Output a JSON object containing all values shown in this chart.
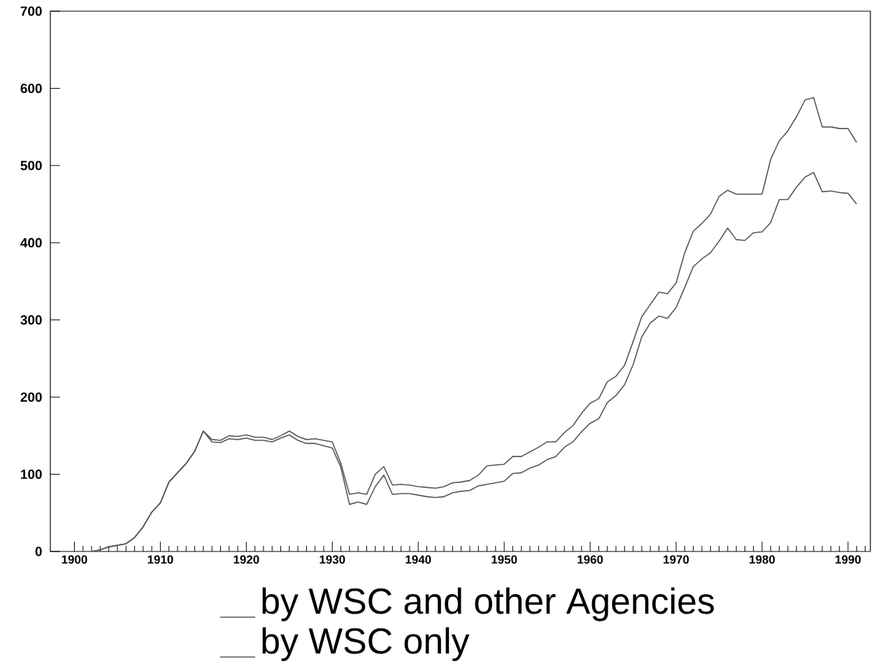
{
  "chart_data": {
    "type": "line",
    "x": [
      1902,
      1903,
      1904,
      1905,
      1906,
      1907,
      1908,
      1909,
      1910,
      1911,
      1912,
      1913,
      1914,
      1915,
      1916,
      1917,
      1918,
      1919,
      1920,
      1921,
      1922,
      1923,
      1924,
      1925,
      1926,
      1927,
      1928,
      1929,
      1930,
      1931,
      1932,
      1933,
      1934,
      1935,
      1936,
      1937,
      1938,
      1939,
      1940,
      1941,
      1942,
      1943,
      1944,
      1945,
      1946,
      1947,
      1948,
      1949,
      1950,
      1951,
      1952,
      1953,
      1954,
      1955,
      1956,
      1957,
      1958,
      1959,
      1960,
      1961,
      1962,
      1963,
      1964,
      1965,
      1966,
      1967,
      1968,
      1969,
      1970,
      1971,
      1972,
      1973,
      1974,
      1975,
      1976,
      1977,
      1978,
      1979,
      1980,
      1981,
      1982,
      1983,
      1984,
      1985,
      1986,
      1987,
      1988,
      1989,
      1990,
      1991
    ],
    "series": [
      {
        "name": "by WSC and other Agencies",
        "color": "#555555",
        "values": [
          0,
          2,
          6,
          8,
          10,
          18,
          32,
          51,
          63,
          90,
          102,
          114,
          130,
          156,
          145,
          144,
          150,
          149,
          151,
          148,
          148,
          145,
          150,
          156,
          149,
          145,
          146,
          144,
          142,
          114,
          74,
          76,
          74,
          100,
          110,
          86,
          87,
          86,
          84,
          83,
          82,
          84,
          89,
          90,
          92,
          99,
          111,
          112,
          113,
          123,
          123,
          129,
          135,
          142,
          142,
          154,
          163,
          179,
          192,
          198,
          220,
          227,
          241,
          272,
          304,
          320,
          336,
          334,
          348,
          387,
          415,
          425,
          437,
          460,
          468,
          463,
          463,
          463,
          463,
          508,
          532,
          545,
          563,
          585,
          588,
          550,
          550,
          548,
          548,
          530
        ]
      },
      {
        "name": "by WSC only",
        "color": "#555555",
        "values": [
          0,
          2,
          6,
          8,
          10,
          18,
          32,
          51,
          63,
          90,
          102,
          114,
          130,
          156,
          142,
          141,
          146,
          145,
          147,
          144,
          144,
          142,
          147,
          151,
          144,
          140,
          140,
          137,
          134,
          109,
          61,
          64,
          61,
          84,
          99,
          74,
          75,
          75,
          73,
          71,
          70,
          71,
          76,
          78,
          79,
          85,
          87,
          89,
          91,
          101,
          102,
          108,
          112,
          119,
          123,
          135,
          142,
          155,
          166,
          172,
          193,
          202,
          216,
          242,
          278,
          296,
          305,
          302,
          316,
          342,
          369,
          379,
          387,
          402,
          419,
          404,
          403,
          413,
          414,
          426,
          456,
          456,
          472,
          485,
          491,
          466,
          467,
          465,
          464,
          450
        ]
      }
    ],
    "xlim": [
      1897.2,
      1992.6
    ],
    "ylim": [
      0,
      700
    ],
    "xticks": [
      1900,
      1910,
      1920,
      1930,
      1940,
      1950,
      1960,
      1970,
      1980,
      1990,
      {
        "value": 1901,
        "label": null
      },
      {
        "value": 1902,
        "label": null
      },
      {
        "value": 1903,
        "label": null
      },
      {
        "value": 1904,
        "label": null
      },
      {
        "value": 1905,
        "label": null
      },
      {
        "value": 1906,
        "label": null
      },
      {
        "value": 1907,
        "label": null
      },
      {
        "value": 1908,
        "label": null
      },
      {
        "value": 1909,
        "label": null
      },
      {
        "value": 1911,
        "label": null
      },
      {
        "value": 1912,
        "label": null
      },
      {
        "value": 1913,
        "label": null
      },
      {
        "value": 1914,
        "label": null
      },
      {
        "value": 1915,
        "label": null
      },
      {
        "value": 1916,
        "label": null
      },
      {
        "value": 1917,
        "label": null
      },
      {
        "value": 1918,
        "label": null
      },
      {
        "value": 1919,
        "label": null
      },
      {
        "value": 1921,
        "label": null
      },
      {
        "value": 1922,
        "label": null
      },
      {
        "value": 1923,
        "label": null
      },
      {
        "value": 1924,
        "label": null
      },
      {
        "value": 1925,
        "label": null
      },
      {
        "value": 1926,
        "label": null
      },
      {
        "value": 1927,
        "label": null
      },
      {
        "value": 1928,
        "label": null
      },
      {
        "value": 1929,
        "label": null
      },
      {
        "value": 1931,
        "label": null
      },
      {
        "value": 1932,
        "label": null
      },
      {
        "value": 1933,
        "label": null
      },
      {
        "value": 1934,
        "label": null
      },
      {
        "value": 1935,
        "label": null
      },
      {
        "value": 1936,
        "label": null
      },
      {
        "value": 1937,
        "label": null
      },
      {
        "value": 1938,
        "label": null
      },
      {
        "value": 1939,
        "label": null
      },
      {
        "value": 1941,
        "label": null
      },
      {
        "value": 1942,
        "label": null
      },
      {
        "value": 1943,
        "label": null
      },
      {
        "value": 1944,
        "label": null
      },
      {
        "value": 1945,
        "label": null
      },
      {
        "value": 1946,
        "label": null
      },
      {
        "value": 1947,
        "label": null
      },
      {
        "value": 1948,
        "label": null
      },
      {
        "value": 1949,
        "label": null
      },
      {
        "value": 1951,
        "label": null
      },
      {
        "value": 1952,
        "label": null
      },
      {
        "value": 1953,
        "label": null
      },
      {
        "value": 1954,
        "label": null
      },
      {
        "value": 1955,
        "label": null
      },
      {
        "value": 1956,
        "label": null
      },
      {
        "value": 1957,
        "label": null
      },
      {
        "value": 1958,
        "label": null
      },
      {
        "value": 1959,
        "label": null
      },
      {
        "value": 1961,
        "label": null
      },
      {
        "value": 1962,
        "label": null
      },
      {
        "value": 1963,
        "label": null
      },
      {
        "value": 1964,
        "label": null
      },
      {
        "value": 1965,
        "label": null
      },
      {
        "value": 1966,
        "label": null
      },
      {
        "value": 1967,
        "label": null
      },
      {
        "value": 1968,
        "label": null
      },
      {
        "value": 1969,
        "label": null
      },
      {
        "value": 1971,
        "label": null
      },
      {
        "value": 1972,
        "label": null
      },
      {
        "value": 1973,
        "label": null
      },
      {
        "value": 1974,
        "label": null
      },
      {
        "value": 1975,
        "label": null
      },
      {
        "value": 1976,
        "label": null
      },
      {
        "value": 1977,
        "label": null
      },
      {
        "value": 1978,
        "label": null
      },
      {
        "value": 1979,
        "label": null
      },
      {
        "value": 1981,
        "label": null
      },
      {
        "value": 1982,
        "label": null
      },
      {
        "value": 1983,
        "label": null
      },
      {
        "value": 1984,
        "label": null
      },
      {
        "value": 1985,
        "label": null
      },
      {
        "value": 1986,
        "label": null
      },
      {
        "value": 1987,
        "label": null
      },
      {
        "value": 1988,
        "label": null
      },
      {
        "value": 1989,
        "label": null
      },
      {
        "value": 1991,
        "label": null
      },
      {
        "value": 1992,
        "label": null
      }
    ],
    "yticks": [
      0,
      100,
      200,
      300,
      400,
      500,
      600,
      700
    ],
    "legend": "bottom",
    "grid": false,
    "marker": "none",
    "line_style": "solid"
  }
}
